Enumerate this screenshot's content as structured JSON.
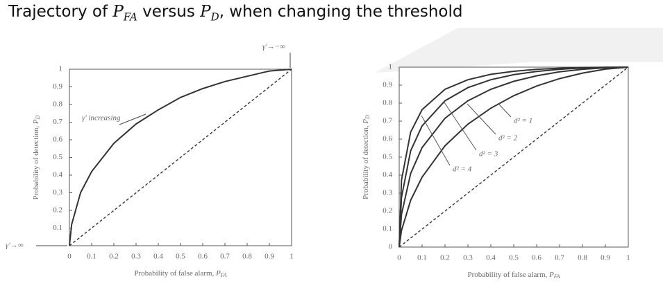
{
  "title": [
    {
      "text": "Trajectory of "
    },
    {
      "text": "P",
      "sub": "FA"
    },
    {
      "text": " versus "
    },
    {
      "text": "P",
      "sub": "D"
    },
    {
      "text": ", when changing the threshold"
    }
  ],
  "chart_data": [
    {
      "type": "line",
      "x": [
        0,
        0.01,
        0.05,
        0.1,
        0.2,
        0.3,
        0.4,
        0.5,
        0.6,
        0.7,
        0.8,
        0.9,
        1
      ],
      "series": [
        {
          "color": "#333333",
          "values": [
            0,
            0.12,
            0.3,
            0.42,
            0.58,
            0.69,
            0.77,
            0.84,
            0.89,
            0.93,
            0.96,
            0.99,
            1
          ]
        },
        {
          "color": "#333333",
          "dash": true,
          "values": [
            0,
            0.01,
            0.05,
            0.1,
            0.2,
            0.3,
            0.4,
            0.5,
            0.6,
            0.7,
            0.8,
            0.9,
            1
          ]
        }
      ],
      "xlim": [
        0,
        1
      ],
      "ylim": [
        0,
        1
      ],
      "xticks": [
        0,
        0.1,
        0.2,
        0.3,
        0.4,
        0.5,
        0.6,
        0.7,
        0.8,
        0.9,
        1
      ],
      "yticks": [
        0.1,
        0.2,
        0.3,
        0.4,
        0.5,
        0.6,
        0.7,
        0.8,
        0.9,
        1
      ],
      "xlabel": [
        {
          "text": "Probability of false alarm, "
        },
        {
          "text": "P",
          "sub": "FA"
        }
      ],
      "ylabel": [
        {
          "text": "Probability of detection, "
        },
        {
          "text": "P",
          "sub": "D"
        }
      ],
      "annotations": [
        "γ′ increasing",
        "γ′→−∞",
        "γ′→∞"
      ]
    },
    {
      "type": "line",
      "x": [
        0,
        0.01,
        0.05,
        0.1,
        0.2,
        0.3,
        0.4,
        0.5,
        0.6,
        0.7,
        0.8,
        0.9,
        1
      ],
      "series": [
        {
          "name": "d² = 1",
          "color": "#333333",
          "values": [
            0,
            0.092,
            0.26,
            0.389,
            0.563,
            0.683,
            0.772,
            0.841,
            0.895,
            0.936,
            0.967,
            0.989,
            1
          ]
        },
        {
          "name": "d² = 2",
          "color": "#333333",
          "values": [
            0,
            0.181,
            0.409,
            0.553,
            0.716,
            0.813,
            0.877,
            0.921,
            0.952,
            0.974,
            0.988,
            0.996,
            1
          ]
        },
        {
          "name": "d² = 3",
          "color": "#333333",
          "values": [
            0,
            0.276,
            0.535,
            0.674,
            0.813,
            0.886,
            0.93,
            0.958,
            0.976,
            0.988,
            0.995,
            0.999,
            1
          ]
        },
        {
          "name": "d² = 4",
          "color": "#333333",
          "values": [
            0,
            0.372,
            0.639,
            0.764,
            0.877,
            0.93,
            0.96,
            0.977,
            0.988,
            0.994,
            0.998,
            0.999,
            1
          ]
        },
        {
          "color": "#333333",
          "dash": true,
          "values": [
            0,
            0.01,
            0.05,
            0.1,
            0.2,
            0.3,
            0.4,
            0.5,
            0.6,
            0.7,
            0.8,
            0.9,
            1
          ]
        }
      ],
      "xlim": [
        0,
        1
      ],
      "ylim": [
        0,
        1
      ],
      "xticks": [
        0,
        0.1,
        0.2,
        0.3,
        0.4,
        0.5,
        0.6,
        0.7,
        0.8,
        0.9,
        1
      ],
      "yticks": [
        0,
        0.1,
        0.2,
        0.3,
        0.4,
        0.5,
        0.6,
        0.7,
        0.8,
        0.9,
        1
      ],
      "xlabel": [
        {
          "text": "Probability of false alarm, "
        },
        {
          "text": "P",
          "sub": "FA"
        }
      ],
      "ylabel": [
        {
          "text": "Probability of detection, "
        },
        {
          "text": "P",
          "sub": "D"
        }
      ],
      "annotations": []
    }
  ]
}
